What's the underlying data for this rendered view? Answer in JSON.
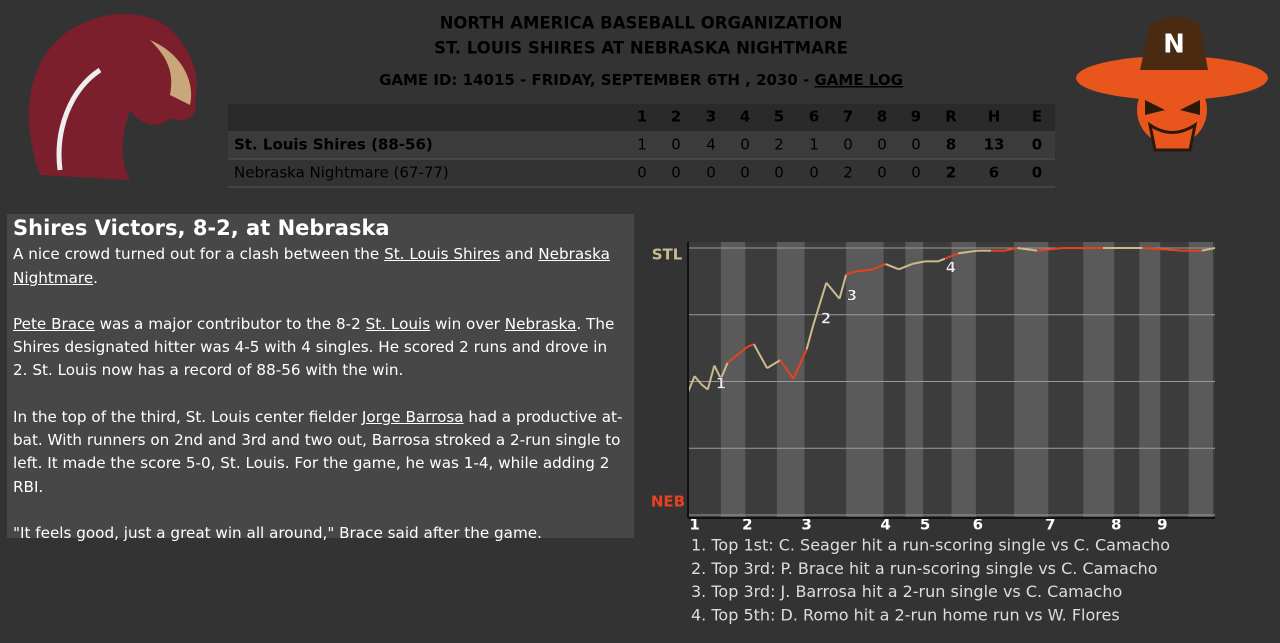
{
  "header": {
    "title": "NORTH AMERICA BASEBALL ORGANIZATION",
    "matchup": "ST. LOUIS SHIRES AT NEBRASKA NIGHTMARE",
    "game_info": "GAME ID: 14015 - FRIDAY, SEPTEMBER 6TH , 2030 - ",
    "game_log_link": "GAME LOG"
  },
  "linescore": {
    "columns": [
      "1",
      "2",
      "3",
      "4",
      "5",
      "6",
      "7",
      "8",
      "9",
      "R",
      "H",
      "E"
    ],
    "rows": [
      {
        "team": "St. Louis Shires (88-56)",
        "cells": [
          1,
          0,
          4,
          0,
          2,
          1,
          0,
          0,
          0,
          8,
          13,
          0
        ]
      },
      {
        "team": "Nebraska Nightmare (67-77)",
        "cells": [
          0,
          0,
          0,
          0,
          0,
          0,
          2,
          0,
          0,
          2,
          6,
          0
        ]
      }
    ]
  },
  "article": {
    "title": "Shires Victors, 8-2, at Nebraska",
    "paragraphs": [
      [
        {
          "text": "A nice crowd turned out for a clash between the "
        },
        {
          "link": "St. Louis Shires"
        },
        {
          "text": " and "
        },
        {
          "link": "Nebraska Nightmare"
        },
        {
          "text": "."
        }
      ],
      [
        {
          "link": "Pete Brace"
        },
        {
          "text": " was a major contributor to the 8-2 "
        },
        {
          "link": "St. Louis"
        },
        {
          "text": " win over "
        },
        {
          "link": "Nebraska"
        },
        {
          "text": ". The Shires designated hitter was 4-5 with 4 singles. He scored 2 runs and drove in 2. St. Louis now has a record of 88-56 with the win."
        }
      ],
      [
        {
          "text": "In the top of the third, St. Louis center fielder "
        },
        {
          "link": "Jorge Barrosa"
        },
        {
          "text": " had a productive at-bat. With runners on 2nd and 3rd and two out, Barrosa stroked a 2-run single to left. It made the score 5-0, St. Louis. For the game, he was 1-4, while adding 2 RBI."
        }
      ],
      [
        {
          "text": "\"It feels good, just a great win all around,\" Brace said after the game."
        }
      ]
    ]
  },
  "chart_data": {
    "type": "line",
    "top_label": "STL",
    "bottom_label": "NEB",
    "top_color": "#cbbb8c",
    "bottom_color": "#e8411d",
    "x": [
      0,
      1,
      2,
      3,
      4,
      5,
      6,
      7,
      9,
      10,
      12,
      14,
      16,
      18,
      19,
      20,
      21,
      22,
      23,
      24,
      25,
      28,
      30,
      32,
      34,
      36,
      38,
      39,
      40,
      41,
      44,
      46,
      48,
      50,
      53,
      57,
      63,
      69,
      75,
      78,
      80
    ],
    "series": [
      {
        "values": [
          46,
          52,
          49,
          47,
          56,
          51,
          57,
          59,
          63,
          64,
          55,
          58,
          51,
          62,
          71,
          79,
          87,
          84,
          81,
          90,
          91,
          92,
          94,
          92,
          94,
          95,
          95,
          96,
          97,
          98,
          99,
          99,
          99,
          100,
          99,
          100,
          100,
          100,
          99,
          99,
          100
        ],
        "segment_colors": [
          "#cbbb8c",
          "#cbbb8c",
          "#cbbb8c",
          "#cbbb8c",
          "#cbbb8c",
          "#cbbb8c",
          "#e8411d",
          "#e8411d",
          "#e8411d",
          "#cbbb8c",
          "#cbbb8c",
          "#e8411d",
          "#e8411d",
          "#cbbb8c",
          "#cbbb8c",
          "#cbbb8c",
          "#cbbb8c",
          "#cbbb8c",
          "#cbbb8c",
          "#e8411d",
          "#e8411d",
          "#e8411d",
          "#cbbb8c",
          "#cbbb8c",
          "#cbbb8c",
          "#cbbb8c",
          "#cbbb8c",
          "#e8411d",
          "#e8411d",
          "#cbbb8c",
          "#cbbb8c",
          "#e8411d",
          "#e8411d",
          "#cbbb8c",
          "#e8411d",
          "#e8411d",
          "#cbbb8c",
          "#e8411d",
          "#e8411d",
          "#cbbb8c"
        ]
      }
    ],
    "xlim": [
      0,
      80
    ],
    "ylim": [
      0,
      100
    ],
    "yticks": [
      0,
      25,
      50,
      75,
      100
    ],
    "grid": true,
    "xticks": [
      {
        "value": 1,
        "label": "1"
      },
      {
        "value": 9,
        "label": "2"
      },
      {
        "value": 18,
        "label": "3"
      },
      {
        "value": 30,
        "label": "4"
      },
      {
        "value": 36,
        "label": "5"
      },
      {
        "value": 44,
        "label": "6"
      },
      {
        "value": 55,
        "label": "7"
      },
      {
        "value": 65,
        "label": "8"
      },
      {
        "value": 72,
        "label": "9"
      }
    ],
    "annotations": [
      "1",
      "2",
      "3",
      "4"
    ],
    "notes": [
      "1. Top 1st: C. Seager hit a run-scoring single vs C. Camacho",
      "2. Top 3rd: P. Brace hit a run-scoring single vs C. Camacho",
      "3. Top 3rd: J. Barrosa hit a 2-run single vs C. Camacho",
      "4. Top 5th: D. Romo hit a 2-run home run vs W. Flores"
    ]
  }
}
